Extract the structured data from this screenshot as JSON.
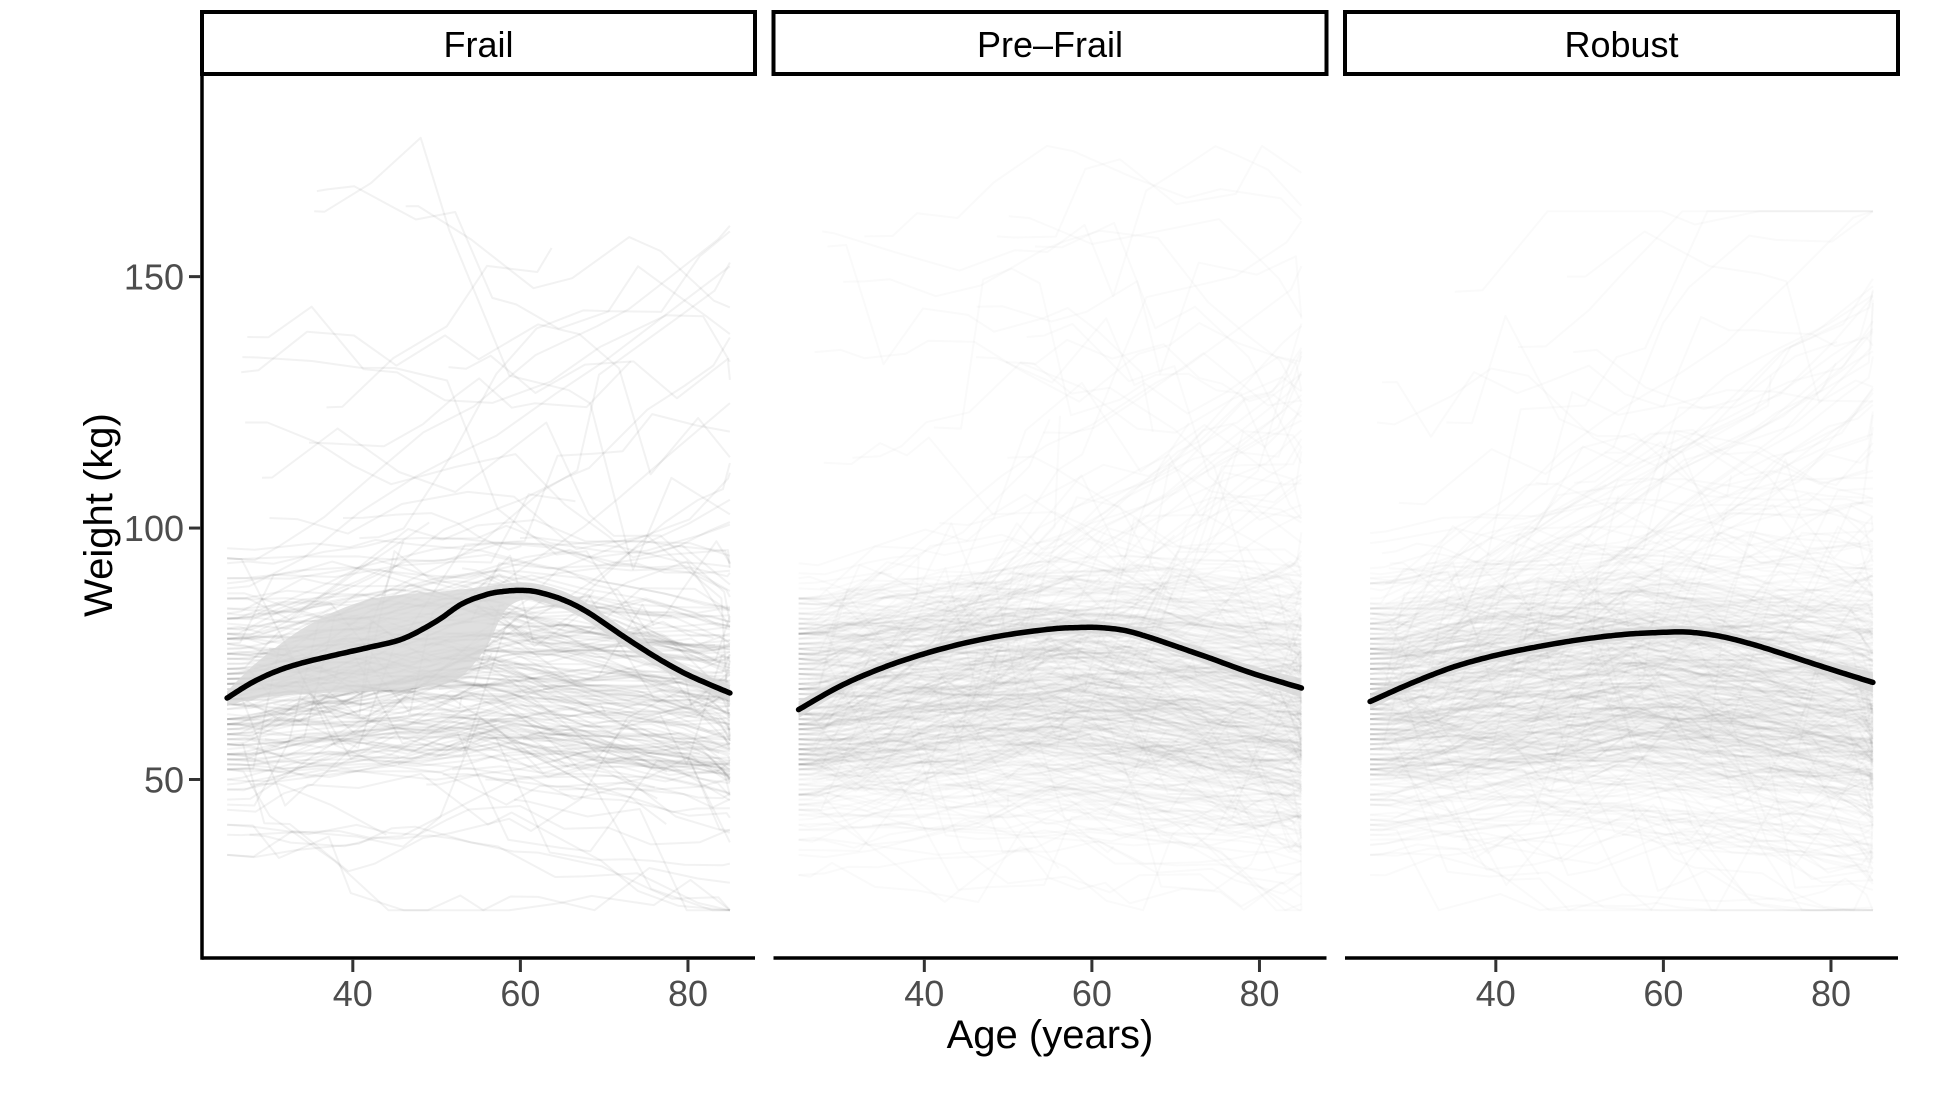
{
  "chart_data": {
    "type": "line",
    "title": "",
    "xlabel": "Age (years)",
    "ylabel": "Weight (kg)",
    "x_domain": [
      22,
      88
    ],
    "y_domain": [
      14.5,
      189.5
    ],
    "x_ticks": [
      40,
      60,
      80
    ],
    "y_ticks": [
      150,
      100,
      50
    ],
    "x_tick_labels": [
      "40",
      "60",
      "80"
    ],
    "y_tick_labels": [
      "150",
      "100",
      "50"
    ],
    "grid": false,
    "legend": false,
    "facets": [
      {
        "label": "Frail",
        "trend": {
          "age": [
            25,
            28,
            31,
            34,
            38,
            42,
            46,
            50,
            53,
            56,
            58,
            60,
            62,
            65,
            68,
            72,
            76,
            80,
            85
          ],
          "weight": [
            66.2,
            69.3,
            71.6,
            73.2,
            74.8,
            76.3,
            78.0,
            81.5,
            84.9,
            86.8,
            87.4,
            87.6,
            87.3,
            85.8,
            83.3,
            78.8,
            74.5,
            70.8,
            67.2
          ]
        },
        "ribbon": {
          "age": [
            25,
            28,
            31,
            34,
            38,
            42,
            46,
            50,
            53,
            56,
            58,
            60,
            62,
            65,
            68,
            72,
            76,
            80,
            85
          ],
          "lower": [
            64.6,
            66.0,
            66.6,
            67.0,
            67.3,
            67.6,
            68.0,
            68.8,
            70.5,
            76.5,
            83.2,
            85.6,
            85.5,
            84.0,
            81.5,
            77.0,
            72.8,
            69.2,
            65.6
          ],
          "upper": [
            67.6,
            72.5,
            76.5,
            80.0,
            83.5,
            85.8,
            86.8,
            87.3,
            87.8,
            88.4,
            88.9,
            89.2,
            88.9,
            87.5,
            85.0,
            80.5,
            76.2,
            72.4,
            68.8
          ]
        },
        "background": {
          "seed": 11,
          "count": 230,
          "line_opacity": 0.065,
          "weight_mean": 66,
          "weight_sd": 15,
          "max_weight": 182,
          "high_lines": 14
        }
      },
      {
        "label": "Pre–Frail",
        "trend": {
          "age": [
            25,
            30,
            35,
            40,
            45,
            50,
            55,
            58,
            61,
            64,
            67,
            70,
            74,
            79,
            85
          ],
          "weight": [
            63.9,
            68.6,
            72.2,
            75.0,
            77.2,
            78.8,
            79.9,
            80.2,
            80.2,
            79.6,
            78.2,
            76.5,
            74.2,
            71.2,
            68.2
          ]
        },
        "ribbon": {
          "age": [
            25,
            30,
            35,
            40,
            45,
            50,
            55,
            58,
            61,
            64,
            67,
            70,
            74,
            79,
            85
          ],
          "lower": [
            62.2,
            67.3,
            71.0,
            73.8,
            76.0,
            77.6,
            78.7,
            79.0,
            79.0,
            78.4,
            77.0,
            75.2,
            72.8,
            69.7,
            66.3
          ],
          "upper": [
            65.6,
            69.9,
            73.4,
            76.2,
            78.4,
            80.0,
            81.1,
            81.4,
            81.4,
            80.8,
            79.4,
            77.8,
            75.6,
            72.7,
            70.1
          ]
        },
        "background": {
          "seed": 23,
          "count": 560,
          "line_opacity": 0.028,
          "weight_mean": 64,
          "weight_sd": 13,
          "max_weight": 176,
          "high_lines": 20
        }
      },
      {
        "label": "Robust",
        "trend": {
          "age": [
            25,
            30,
            35,
            40,
            45,
            50,
            55,
            59,
            63,
            67,
            71,
            75,
            80,
            85
          ],
          "weight": [
            65.5,
            69.2,
            72.4,
            74.7,
            76.4,
            77.8,
            78.8,
            79.2,
            79.3,
            78.4,
            76.7,
            74.6,
            71.9,
            69.3
          ]
        },
        "ribbon": {
          "age": [
            25,
            30,
            35,
            40,
            45,
            50,
            55,
            59,
            63,
            67,
            71,
            75,
            80,
            85
          ],
          "lower": [
            63.9,
            68.0,
            71.2,
            73.5,
            75.2,
            76.6,
            77.6,
            78.0,
            78.1,
            77.2,
            75.5,
            73.3,
            70.4,
            67.3
          ],
          "upper": [
            67.1,
            70.4,
            73.6,
            75.9,
            77.6,
            79.0,
            80.0,
            80.4,
            80.5,
            79.6,
            77.9,
            75.9,
            73.4,
            71.3
          ]
        },
        "background": {
          "seed": 37,
          "count": 580,
          "line_opacity": 0.028,
          "weight_mean": 64,
          "weight_sd": 12.5,
          "max_weight": 163,
          "high_lines": 17
        }
      }
    ],
    "style": {
      "trend_color": "#000000",
      "trend_width": 5.5,
      "ribbon_fill": "#D7D7D7",
      "ribbon_opacity": 0.8,
      "spaghetti_color": "#3C3C3C",
      "axis_line_color": "#000000",
      "tick_mark_color": "#333333",
      "tick_label_color": "#4D4D4D",
      "axis_title_color": "#000000",
      "strip_fill": "#FFFFFF",
      "strip_border": "#000000",
      "background": "#FFFFFF"
    }
  }
}
